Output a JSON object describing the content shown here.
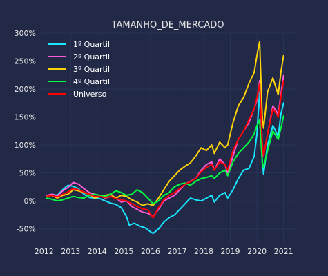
{
  "chart_data": {
    "type": "line",
    "title": "TAMANHO_DE_MERCADO",
    "xlabel": "",
    "ylabel": "",
    "xlim": [
      2011.8,
      2021.45
    ],
    "ylim": [
      -0.75,
      3.0
    ],
    "x_ticks": [
      2012,
      2013,
      2014,
      2015,
      2016,
      2017,
      2018,
      2019,
      2020,
      2021
    ],
    "x_tick_labels": [
      "2012",
      "2013",
      "2014",
      "2015",
      "2016",
      "2017",
      "2018",
      "2019",
      "2020",
      "2021"
    ],
    "y_ticks": [
      -0.5,
      0,
      0.5,
      1.0,
      1.5,
      2.0,
      2.5,
      3.0
    ],
    "y_tick_labels": [
      "-50%",
      "0%",
      "50%",
      "100%",
      "150%",
      "200%",
      "250%",
      "300%"
    ],
    "grid": true,
    "legend_position": "upper-left",
    "series": [
      {
        "name": "1º Quartil",
        "color": "#18E7FF",
        "points": [
          [
            2012.1,
            0.08
          ],
          [
            2012.3,
            0.12
          ],
          [
            2012.5,
            0.1
          ],
          [
            2012.7,
            0.2
          ],
          [
            2012.9,
            0.28
          ],
          [
            2013.1,
            0.26
          ],
          [
            2013.3,
            0.22
          ],
          [
            2013.5,
            0.12
          ],
          [
            2013.7,
            0.06
          ],
          [
            2013.9,
            0.05
          ],
          [
            2014.1,
            0.04
          ],
          [
            2014.3,
            0.0
          ],
          [
            2014.5,
            -0.04
          ],
          [
            2014.7,
            -0.06
          ],
          [
            2014.9,
            -0.12
          ],
          [
            2015.1,
            -0.28
          ],
          [
            2015.2,
            -0.43
          ],
          [
            2015.4,
            -0.4
          ],
          [
            2015.6,
            -0.45
          ],
          [
            2015.8,
            -0.48
          ],
          [
            2016.0,
            -0.55
          ],
          [
            2016.1,
            -0.58
          ],
          [
            2016.3,
            -0.5
          ],
          [
            2016.5,
            -0.38
          ],
          [
            2016.7,
            -0.3
          ],
          [
            2016.9,
            -0.25
          ],
          [
            2017.1,
            -0.15
          ],
          [
            2017.3,
            -0.05
          ],
          [
            2017.5,
            0.05
          ],
          [
            2017.7,
            0.02
          ],
          [
            2017.9,
            0.0
          ],
          [
            2018.1,
            0.05
          ],
          [
            2018.3,
            0.1
          ],
          [
            2018.4,
            -0.02
          ],
          [
            2018.6,
            0.1
          ],
          [
            2018.8,
            0.15
          ],
          [
            2018.9,
            0.05
          ],
          [
            2019.1,
            0.2
          ],
          [
            2019.3,
            0.4
          ],
          [
            2019.5,
            0.55
          ],
          [
            2019.7,
            0.58
          ],
          [
            2019.9,
            0.8
          ],
          [
            2020.0,
            1.2
          ],
          [
            2020.1,
            1.95
          ],
          [
            2020.2,
            0.7
          ],
          [
            2020.25,
            0.48
          ],
          [
            2020.4,
            1.0
          ],
          [
            2020.6,
            1.35
          ],
          [
            2020.8,
            1.15
          ],
          [
            2020.9,
            1.55
          ],
          [
            2021.0,
            1.75
          ]
        ]
      },
      {
        "name": "2º Quartil",
        "color": "#FF5BD8",
        "points": [
          [
            2012.1,
            0.1
          ],
          [
            2012.3,
            0.12
          ],
          [
            2012.5,
            0.09
          ],
          [
            2012.7,
            0.18
          ],
          [
            2012.9,
            0.24
          ],
          [
            2013.1,
            0.33
          ],
          [
            2013.3,
            0.3
          ],
          [
            2013.5,
            0.22
          ],
          [
            2013.7,
            0.15
          ],
          [
            2013.9,
            0.12
          ],
          [
            2014.1,
            0.1
          ],
          [
            2014.3,
            0.05
          ],
          [
            2014.5,
            0.08
          ],
          [
            2014.7,
            0.05
          ],
          [
            2014.9,
            -0.02
          ],
          [
            2015.1,
            0.0
          ],
          [
            2015.3,
            -0.1
          ],
          [
            2015.5,
            -0.15
          ],
          [
            2015.7,
            -0.2
          ],
          [
            2015.9,
            -0.22
          ],
          [
            2016.1,
            -0.28
          ],
          [
            2016.3,
            -0.15
          ],
          [
            2016.5,
            0.0
          ],
          [
            2016.7,
            0.05
          ],
          [
            2016.9,
            0.1
          ],
          [
            2017.1,
            0.2
          ],
          [
            2017.3,
            0.3
          ],
          [
            2017.5,
            0.35
          ],
          [
            2017.7,
            0.4
          ],
          [
            2017.9,
            0.55
          ],
          [
            2018.1,
            0.65
          ],
          [
            2018.3,
            0.7
          ],
          [
            2018.4,
            0.55
          ],
          [
            2018.6,
            0.75
          ],
          [
            2018.8,
            0.65
          ],
          [
            2018.9,
            0.5
          ],
          [
            2019.1,
            0.8
          ],
          [
            2019.3,
            1.1
          ],
          [
            2019.5,
            1.25
          ],
          [
            2019.7,
            1.4
          ],
          [
            2019.9,
            1.65
          ],
          [
            2020.0,
            1.8
          ],
          [
            2020.1,
            2.15
          ],
          [
            2020.2,
            1.0
          ],
          [
            2020.25,
            0.8
          ],
          [
            2020.4,
            1.2
          ],
          [
            2020.6,
            1.7
          ],
          [
            2020.8,
            1.55
          ],
          [
            2020.9,
            1.9
          ],
          [
            2021.0,
            2.25
          ]
        ]
      },
      {
        "name": "3º Quartil",
        "color": "#FDD40A",
        "points": [
          [
            2012.1,
            0.08
          ],
          [
            2012.3,
            0.1
          ],
          [
            2012.5,
            0.05
          ],
          [
            2012.7,
            0.1
          ],
          [
            2012.9,
            0.12
          ],
          [
            2013.1,
            0.2
          ],
          [
            2013.3,
            0.18
          ],
          [
            2013.5,
            0.15
          ],
          [
            2013.7,
            0.12
          ],
          [
            2013.9,
            0.05
          ],
          [
            2014.1,
            0.08
          ],
          [
            2014.3,
            0.1
          ],
          [
            2014.5,
            0.12
          ],
          [
            2014.7,
            0.05
          ],
          [
            2014.9,
            0.1
          ],
          [
            2015.1,
            0.08
          ],
          [
            2015.3,
            0.02
          ],
          [
            2015.5,
            -0.02
          ],
          [
            2015.7,
            -0.08
          ],
          [
            2015.9,
            -0.05
          ],
          [
            2016.1,
            -0.08
          ],
          [
            2016.3,
            0.05
          ],
          [
            2016.5,
            0.2
          ],
          [
            2016.7,
            0.35
          ],
          [
            2016.9,
            0.45
          ],
          [
            2017.1,
            0.55
          ],
          [
            2017.3,
            0.62
          ],
          [
            2017.5,
            0.68
          ],
          [
            2017.7,
            0.8
          ],
          [
            2017.9,
            0.95
          ],
          [
            2018.1,
            0.9
          ],
          [
            2018.3,
            1.0
          ],
          [
            2018.4,
            0.85
          ],
          [
            2018.6,
            1.05
          ],
          [
            2018.8,
            0.95
          ],
          [
            2018.9,
            1.0
          ],
          [
            2019.1,
            1.4
          ],
          [
            2019.3,
            1.7
          ],
          [
            2019.5,
            1.85
          ],
          [
            2019.7,
            2.1
          ],
          [
            2019.9,
            2.3
          ],
          [
            2020.0,
            2.6
          ],
          [
            2020.1,
            2.85
          ],
          [
            2020.2,
            1.5
          ],
          [
            2020.25,
            1.3
          ],
          [
            2020.4,
            1.95
          ],
          [
            2020.6,
            2.2
          ],
          [
            2020.8,
            1.9
          ],
          [
            2020.9,
            2.3
          ],
          [
            2021.0,
            2.6
          ]
        ]
      },
      {
        "name": "4º Quartil",
        "color": "#00FF41",
        "points": [
          [
            2012.1,
            0.05
          ],
          [
            2012.3,
            0.03
          ],
          [
            2012.5,
            0.0
          ],
          [
            2012.7,
            0.02
          ],
          [
            2012.9,
            0.05
          ],
          [
            2013.1,
            0.08
          ],
          [
            2013.3,
            0.06
          ],
          [
            2013.5,
            0.05
          ],
          [
            2013.7,
            0.1
          ],
          [
            2013.9,
            0.12
          ],
          [
            2014.1,
            0.1
          ],
          [
            2014.3,
            0.08
          ],
          [
            2014.5,
            0.12
          ],
          [
            2014.7,
            0.18
          ],
          [
            2014.9,
            0.15
          ],
          [
            2015.1,
            0.1
          ],
          [
            2015.3,
            0.12
          ],
          [
            2015.5,
            0.2
          ],
          [
            2015.7,
            0.15
          ],
          [
            2015.9,
            0.05
          ],
          [
            2016.1,
            -0.05
          ],
          [
            2016.3,
            0.0
          ],
          [
            2016.5,
            0.1
          ],
          [
            2016.7,
            0.15
          ],
          [
            2016.9,
            0.25
          ],
          [
            2017.1,
            0.3
          ],
          [
            2017.3,
            0.32
          ],
          [
            2017.5,
            0.28
          ],
          [
            2017.7,
            0.35
          ],
          [
            2017.9,
            0.4
          ],
          [
            2018.1,
            0.42
          ],
          [
            2018.3,
            0.45
          ],
          [
            2018.4,
            0.4
          ],
          [
            2018.6,
            0.5
          ],
          [
            2018.8,
            0.55
          ],
          [
            2018.9,
            0.45
          ],
          [
            2019.1,
            0.7
          ],
          [
            2019.3,
            0.85
          ],
          [
            2019.5,
            0.95
          ],
          [
            2019.7,
            1.05
          ],
          [
            2019.9,
            1.2
          ],
          [
            2020.0,
            1.35
          ],
          [
            2020.1,
            1.45
          ],
          [
            2020.2,
            0.7
          ],
          [
            2020.25,
            0.6
          ],
          [
            2020.4,
            0.9
          ],
          [
            2020.6,
            1.25
          ],
          [
            2020.8,
            1.1
          ],
          [
            2020.9,
            1.3
          ],
          [
            2021.0,
            1.52
          ]
        ]
      },
      {
        "name": "Universo",
        "color": "#FF0000",
        "points": [
          [
            2012.1,
            0.08
          ],
          [
            2012.3,
            0.1
          ],
          [
            2012.5,
            0.07
          ],
          [
            2012.7,
            0.12
          ],
          [
            2012.9,
            0.16
          ],
          [
            2013.1,
            0.22
          ],
          [
            2013.3,
            0.2
          ],
          [
            2013.5,
            0.16
          ],
          [
            2013.7,
            0.12
          ],
          [
            2013.9,
            0.08
          ],
          [
            2014.1,
            0.08
          ],
          [
            2014.3,
            0.06
          ],
          [
            2014.5,
            0.08
          ],
          [
            2014.7,
            0.04
          ],
          [
            2014.9,
            0.02
          ],
          [
            2015.1,
            0.0
          ],
          [
            2015.3,
            -0.05
          ],
          [
            2015.5,
            -0.1
          ],
          [
            2015.7,
            -0.14
          ],
          [
            2015.9,
            -0.16
          ],
          [
            2016.1,
            -0.3
          ],
          [
            2016.3,
            -0.12
          ],
          [
            2016.5,
            0.02
          ],
          [
            2016.7,
            0.1
          ],
          [
            2016.9,
            0.15
          ],
          [
            2017.1,
            0.22
          ],
          [
            2017.3,
            0.3
          ],
          [
            2017.5,
            0.34
          ],
          [
            2017.7,
            0.4
          ],
          [
            2017.9,
            0.52
          ],
          [
            2018.1,
            0.6
          ],
          [
            2018.3,
            0.65
          ],
          [
            2018.4,
            0.55
          ],
          [
            2018.6,
            0.7
          ],
          [
            2018.8,
            0.65
          ],
          [
            2018.9,
            0.55
          ],
          [
            2019.1,
            0.9
          ],
          [
            2019.3,
            1.1
          ],
          [
            2019.5,
            1.25
          ],
          [
            2019.7,
            1.45
          ],
          [
            2019.9,
            1.65
          ],
          [
            2020.0,
            1.85
          ],
          [
            2020.1,
            2.1
          ],
          [
            2020.2,
            1.0
          ],
          [
            2020.25,
            0.8
          ],
          [
            2020.4,
            1.2
          ],
          [
            2020.6,
            1.65
          ],
          [
            2020.8,
            1.5
          ],
          [
            2020.9,
            1.85
          ],
          [
            2021.0,
            2.15
          ]
        ]
      }
    ]
  },
  "colors": {
    "background": "#212946",
    "grid": "#2A3459",
    "text": "#e6e6e6"
  }
}
